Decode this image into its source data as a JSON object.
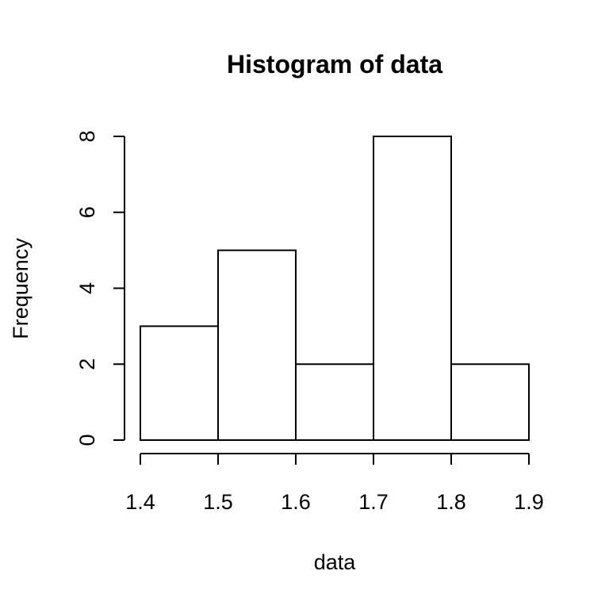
{
  "chart_data": {
    "type": "bar",
    "title": "Histogram of data",
    "xlabel": "data",
    "ylabel": "Frequency",
    "bins": [
      {
        "start": 1.4,
        "end": 1.5,
        "count": 3
      },
      {
        "start": 1.5,
        "end": 1.6,
        "count": 5
      },
      {
        "start": 1.6,
        "end": 1.7,
        "count": 2
      },
      {
        "start": 1.7,
        "end": 1.8,
        "count": 8
      },
      {
        "start": 1.8,
        "end": 1.9,
        "count": 2
      }
    ],
    "xlim": [
      1.4,
      1.9
    ],
    "ylim": [
      0,
      8
    ],
    "x_ticks": [
      "1.4",
      "1.5",
      "1.6",
      "1.7",
      "1.8",
      "1.9"
    ],
    "y_ticks": [
      "0",
      "2",
      "4",
      "6",
      "8"
    ],
    "grid": false,
    "bar_fill": "#ffffff",
    "bar_stroke": "#000000"
  }
}
